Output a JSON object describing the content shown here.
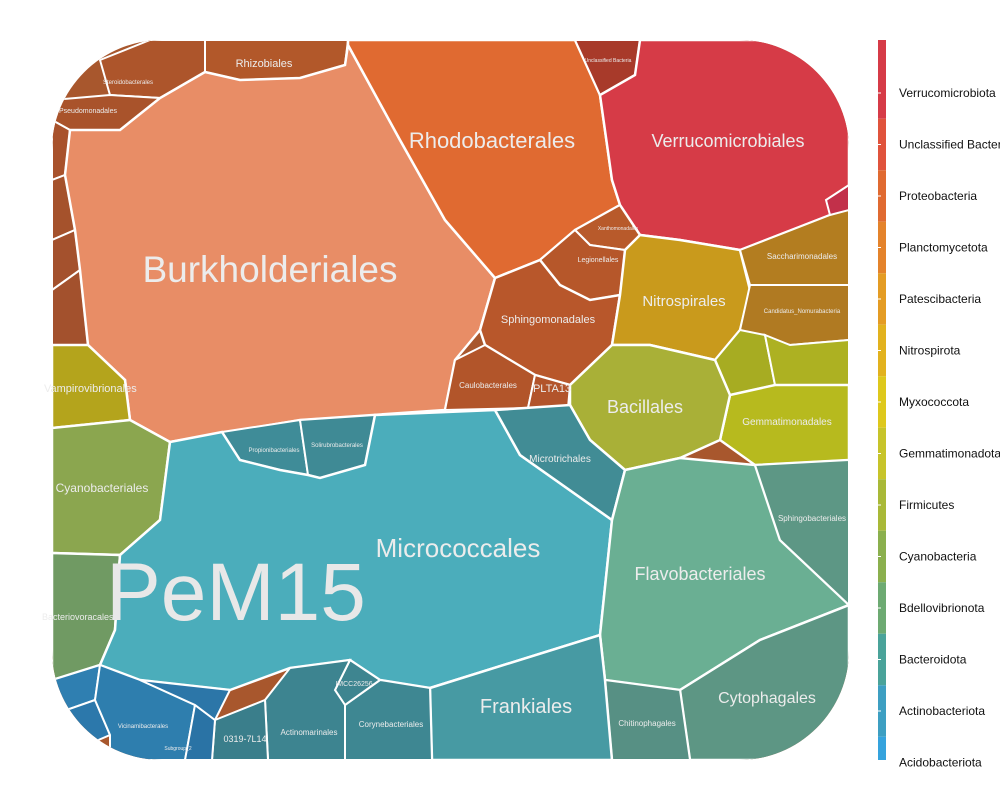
{
  "colors": {
    "border": "#ffffff",
    "label": "#ececec",
    "background": "#ffffff"
  },
  "chart_data": {
    "type": "treemap",
    "title": "",
    "group_label": "PeM15",
    "legend": {
      "placement": "right",
      "entries": [
        {
          "name": "Verrucomicrobiota",
          "color": "#d63b47"
        },
        {
          "name": "Unclassified Bacteria",
          "color": "#e0533c"
        },
        {
          "name": "Proteobacteria",
          "color": "#e06a31"
        },
        {
          "name": "Planctomycetota",
          "color": "#e4832b"
        },
        {
          "name": "Patescibacteria",
          "color": "#e49c24"
        },
        {
          "name": "Nitrospirota",
          "color": "#e2b21e"
        },
        {
          "name": "Myxococcota",
          "color": "#dec81c"
        },
        {
          "name": "Gemmatimonadota",
          "color": "#c7c42a"
        },
        {
          "name": "Firmicutes",
          "color": "#a9b938"
        },
        {
          "name": "Cyanobacteria",
          "color": "#8bb04e"
        },
        {
          "name": "Bdellovibrionota",
          "color": "#6daa72"
        },
        {
          "name": "Bacteroidota",
          "color": "#4aa39a"
        },
        {
          "name": "Actinobacteriota",
          "color": "#3d9fc2"
        },
        {
          "name": "Acidobacteriota",
          "color": "#35a3dd"
        }
      ]
    },
    "cells": [
      {
        "label": "Burkholderiales",
        "phylum": "Proteobacteria"
      },
      {
        "label": "Rhodobacterales",
        "phylum": "Proteobacteria"
      },
      {
        "label": "Rhizobiales",
        "phylum": "Proteobacteria"
      },
      {
        "label": "Steroidobacterales",
        "phylum": "Proteobacteria"
      },
      {
        "label": "Pseudomonadales",
        "phylum": "Proteobacteria"
      },
      {
        "label": "Legionellales",
        "phylum": "Proteobacteria"
      },
      {
        "label": "Xanthomonadales",
        "phylum": "Proteobacteria"
      },
      {
        "label": "Sphingomonadales",
        "phylum": "Proteobacteria"
      },
      {
        "label": "Caulobacterales",
        "phylum": "Proteobacteria"
      },
      {
        "label": "PLTA13",
        "phylum": "Proteobacteria"
      },
      {
        "label": "Verrucomicrobiales",
        "phylum": "Verrucomicrobiota"
      },
      {
        "label": "Unclassified Bacteria",
        "phylum": "Unclassified Bacteria"
      },
      {
        "label": "Nitrospirales",
        "phylum": "Nitrospirota"
      },
      {
        "label": "Saccharimonadales",
        "phylum": "Patescibacteria"
      },
      {
        "label": "Candidatus_Nomurabacteria",
        "phylum": "Patescibacteria"
      },
      {
        "label": "Bacillales",
        "phylum": "Firmicutes"
      },
      {
        "label": "Gemmatimonadales",
        "phylum": "Gemmatimonadota"
      },
      {
        "label": "Vampirovibrionales",
        "phylum": "Cyanobacteria"
      },
      {
        "label": "Cyanobacteriales",
        "phylum": "Cyanobacteria"
      },
      {
        "label": "Bacteriovoracales",
        "phylum": "Bdellovibrionota"
      },
      {
        "label": "Micrococcales",
        "phylum": "Actinobacteriota"
      },
      {
        "label": "Microtrichales",
        "phylum": "Actinobacteriota"
      },
      {
        "label": "Propionibacteriales",
        "phylum": "Actinobacteriota"
      },
      {
        "label": "Solirubrobacterales",
        "phylum": "Actinobacteriota"
      },
      {
        "label": "Frankiales",
        "phylum": "Actinobacteriota"
      },
      {
        "label": "IMCC26256",
        "phylum": "Actinobacteriota"
      },
      {
        "label": "Corynebacteriales",
        "phylum": "Actinobacteriota"
      },
      {
        "label": "Actinomarinales",
        "phylum": "Actinobacteriota"
      },
      {
        "label": "0319-7L14",
        "phylum": "Actinobacteriota"
      },
      {
        "label": "Flavobacteriales",
        "phylum": "Bacteroidota"
      },
      {
        "label": "Sphingobacteriales",
        "phylum": "Bacteroidota"
      },
      {
        "label": "Cytophagales",
        "phylum": "Bacteroidota"
      },
      {
        "label": "Chitinophagales",
        "phylum": "Bacteroidota"
      },
      {
        "label": "Vicinamibacterales",
        "phylum": "Acidobacteriota"
      },
      {
        "label": "Subgroup_2",
        "phylum": "Acidobacteriota"
      }
    ]
  }
}
